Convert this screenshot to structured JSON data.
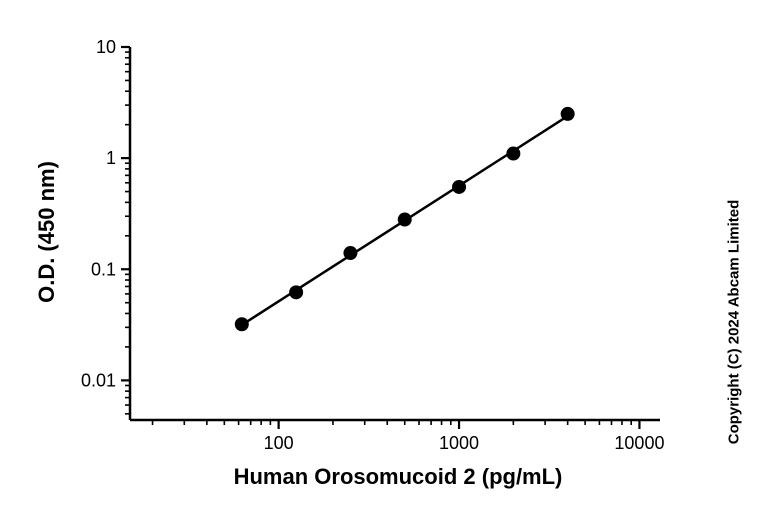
{
  "chart_data": {
    "type": "scatter",
    "title": "",
    "xlabel": "Human Orosomucoid 2 (pg/mL)",
    "ylabel": "O.D. (450 nm)",
    "xscale": "log",
    "yscale": "log",
    "xlim": [
      15,
      13000
    ],
    "ylim": [
      0.0044,
      10
    ],
    "x": [
      62.5,
      125,
      250,
      500,
      1000,
      2000,
      4000
    ],
    "y": [
      0.032,
      0.062,
      0.14,
      0.28,
      0.55,
      1.1,
      2.5
    ],
    "x_ticks": [
      100,
      1000,
      10000
    ],
    "x_tick_labels": [
      "100",
      "1000",
      "10000"
    ],
    "y_ticks": [
      0.01,
      0.1,
      1,
      10
    ],
    "y_tick_labels": [
      "0.01",
      "0.1",
      "1",
      "10"
    ],
    "grid": false,
    "legend": false,
    "line_color": "#000000",
    "marker_color": "#000000",
    "marker": "circle",
    "fit": "linear-loglog"
  },
  "copyright": "Copyright (C) 2024 Abcam Limited"
}
